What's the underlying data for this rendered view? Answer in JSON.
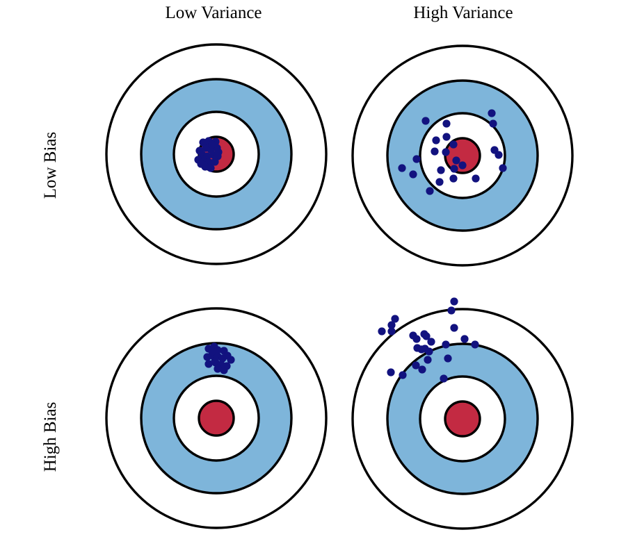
{
  "headers": {
    "columns": [
      "Low Variance",
      "High Variance"
    ],
    "rows": [
      "Low Bias",
      "High Bias"
    ]
  },
  "colors": {
    "background": "#ffffff",
    "ring_white": "#ffffff",
    "ring_blue": "#7EB5DA",
    "bullseye_red": "#C32A42",
    "outline": "#000000",
    "dot": "#12127F"
  },
  "target_geometry": {
    "ring_radii": [
      158,
      108,
      61,
      25
    ],
    "outline_width": 3.4,
    "dot_radius": 5.6
  },
  "targets": [
    {
      "bias": "Low Bias",
      "variance": "Low Variance",
      "dots": [
        [
          -19,
          -17
        ],
        [
          -11,
          -19
        ],
        [
          -1,
          -18
        ],
        [
          -24,
          -5
        ],
        [
          -15,
          -9
        ],
        [
          -8,
          -7
        ],
        [
          1,
          -9
        ],
        [
          -20,
          1
        ],
        [
          -13,
          3
        ],
        [
          -4,
          1
        ],
        [
          2,
          3
        ],
        [
          -26,
          8
        ],
        [
          -18,
          11
        ],
        [
          -10,
          12
        ],
        [
          -2,
          11
        ],
        [
          -16,
          18
        ],
        [
          -8,
          20
        ],
        [
          3,
          -3
        ],
        [
          -6,
          -14
        ],
        [
          -22,
          14
        ]
      ]
    },
    {
      "bias": "Low Bias",
      "variance": "High Variance",
      "dots": [
        [
          42,
          -61
        ],
        [
          44,
          -46
        ],
        [
          -53,
          -50
        ],
        [
          -23,
          -46
        ],
        [
          -23,
          -27
        ],
        [
          -38,
          -22
        ],
        [
          -13,
          -16
        ],
        [
          -40,
          -6
        ],
        [
          -24,
          -5
        ],
        [
          46,
          -8
        ],
        [
          52,
          -1
        ],
        [
          -66,
          5
        ],
        [
          -87,
          18
        ],
        [
          -71,
          27
        ],
        [
          -9,
          7
        ],
        [
          0,
          14
        ],
        [
          -12,
          19
        ],
        [
          -31,
          21
        ],
        [
          58,
          18
        ],
        [
          -33,
          38
        ],
        [
          -13,
          33
        ],
        [
          19,
          33
        ],
        [
          -47,
          51
        ]
      ]
    },
    {
      "bias": "High Bias",
      "variance": "Low Variance",
      "dots": [
        [
          -11,
          -100
        ],
        [
          -3,
          -103
        ],
        [
          2,
          -98
        ],
        [
          11,
          -97
        ],
        [
          -13,
          -88
        ],
        [
          -5,
          -90
        ],
        [
          2,
          -89
        ],
        [
          9,
          -86
        ],
        [
          21,
          -84
        ],
        [
          -11,
          -78
        ],
        [
          -1,
          -80
        ],
        [
          7,
          -77
        ],
        [
          15,
          -75
        ],
        [
          11,
          -69
        ],
        [
          2,
          -71
        ],
        [
          -6,
          -96
        ],
        [
          16,
          -90
        ],
        [
          -2,
          -82
        ]
      ]
    },
    {
      "bias": "High Bias",
      "variance": "High Variance",
      "dots": [
        [
          -12,
          -169
        ],
        [
          -16,
          -156
        ],
        [
          -97,
          -144
        ],
        [
          -102,
          -135
        ],
        [
          -116,
          -126
        ],
        [
          -102,
          -126
        ],
        [
          -12,
          -131
        ],
        [
          -71,
          -120
        ],
        [
          -55,
          -122
        ],
        [
          -66,
          -115
        ],
        [
          -52,
          -119
        ],
        [
          -45,
          -111
        ],
        [
          3,
          -115
        ],
        [
          18,
          -107
        ],
        [
          -65,
          -102
        ],
        [
          -59,
          -100
        ],
        [
          -54,
          -101
        ],
        [
          -48,
          -97
        ],
        [
          -24,
          -107
        ],
        [
          -50,
          -85
        ],
        [
          -21,
          -87
        ],
        [
          -67,
          -77
        ],
        [
          -58,
          -71
        ],
        [
          -103,
          -67
        ],
        [
          -86,
          -63
        ],
        [
          -27,
          -58
        ]
      ]
    }
  ]
}
